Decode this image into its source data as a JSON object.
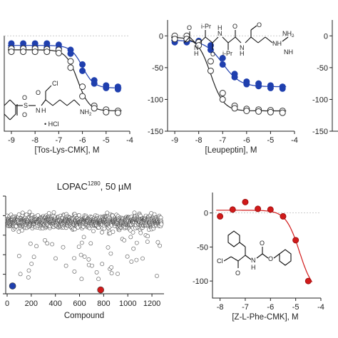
{
  "colors": {
    "blue": "#1f3fae",
    "red": "#d11a1a",
    "open": "#ffffff",
    "stroke": "#333333"
  },
  "chart_data": [
    {
      "id": "tos",
      "type": "scatter",
      "xlabel": "[Tos-Lys-CMK], M",
      "xlim": [
        -9.3,
        -4
      ],
      "ylim": [
        -150,
        25
      ],
      "xticks": [
        -9,
        -8,
        -7,
        -6,
        -5,
        -4
      ],
      "yticks": [],
      "series": [
        {
          "marker": "filled-blue",
          "x": [
            -9,
            -9,
            -8.5,
            -8.5,
            -8,
            -8,
            -7.5,
            -7.5,
            -7,
            -7,
            -6.5,
            -6.5,
            -6,
            -6,
            -5.5,
            -5.5,
            -5,
            -5,
            -4.5,
            -4.5
          ],
          "y": [
            -12,
            -18,
            -12,
            -18,
            -12,
            -17,
            -12,
            -18,
            -14,
            -20,
            -22,
            -28,
            -45,
            -55,
            -70,
            -75,
            -78,
            -82,
            -80,
            -84
          ]
        },
        {
          "marker": "open",
          "x": [
            -9,
            -9,
            -8.5,
            -8.5,
            -8,
            -8,
            -7.5,
            -7.5,
            -7,
            -7,
            -6.5,
            -6.5,
            -6,
            -6,
            -5.5,
            -5.5,
            -5,
            -5,
            -4.5,
            -4.5
          ],
          "y": [
            -20,
            -25,
            -20,
            -25,
            -20,
            -25,
            -21,
            -25,
            -22,
            -27,
            -40,
            -50,
            -80,
            -95,
            -110,
            -114,
            -116,
            -120,
            -118,
            -121
          ]
        }
      ],
      "fits": [
        {
          "color": "blue",
          "top": -15,
          "bottom": -82,
          "logec50": -6.0,
          "hill": 1.8
        },
        {
          "color": "black",
          "top": -22,
          "bottom": -118,
          "logec50": -6.2,
          "hill": 1.8
        }
      ]
    },
    {
      "id": "leu",
      "type": "scatter",
      "xlabel": "[Leupeptin], M",
      "xlim": [
        -9.3,
        -4
      ],
      "ylim": [
        -150,
        25
      ],
      "xticks": [
        -9,
        -8,
        -7,
        -6,
        -5,
        -4
      ],
      "yticks": [
        0,
        -50,
        -100,
        -150
      ],
      "series": [
        {
          "marker": "filled-blue",
          "x": [
            -9,
            -9,
            -8.5,
            -8.5,
            -8,
            -8,
            -7.5,
            -7.5,
            -7,
            -7,
            -6.5,
            -6.5,
            -6,
            -6,
            -5.5,
            -5.5,
            -5,
            -5,
            -4.5,
            -4.5
          ],
          "y": [
            -5,
            -10,
            -5,
            -10,
            -8,
            -12,
            -15,
            -22,
            -35,
            -45,
            -60,
            -65,
            -72,
            -76,
            -75,
            -79,
            -78,
            -82,
            -80,
            -83
          ]
        },
        {
          "marker": "open",
          "x": [
            -9,
            -9,
            -8.5,
            -8.5,
            -8,
            -8,
            -7.5,
            -7.5,
            -7,
            -7,
            -6.5,
            -6.5,
            -6,
            -6,
            -5.5,
            -5.5,
            -5,
            -5,
            -4.5,
            -4.5
          ],
          "y": [
            0,
            -5,
            0,
            -5,
            -10,
            -15,
            -40,
            -55,
            -90,
            -100,
            -110,
            -114,
            -115,
            -118,
            -116,
            -119,
            -117,
            -120,
            -118,
            -121
          ]
        }
      ],
      "fits": [
        {
          "color": "blue",
          "top": -7,
          "bottom": -80,
          "logec50": -7.0,
          "hill": 1.2
        },
        {
          "color": "black",
          "top": -2,
          "bottom": -118,
          "logec50": -7.5,
          "hill": 1.6
        }
      ]
    },
    {
      "id": "third",
      "type": "scatter",
      "xlim": [
        0,
        1
      ],
      "ylim": [
        -150,
        25
      ],
      "yticks": [
        0,
        -50,
        -100,
        -150
      ],
      "series": []
    },
    {
      "id": "lopac",
      "type": "scatter",
      "title_main": "LOPAC",
      "title_sup": "1280",
      "title_rest": ", 50 µM",
      "xlabel": "Compound",
      "xlim": [
        0,
        1300
      ],
      "ylim": [
        0,
        100
      ],
      "xticks": [
        0,
        200,
        400,
        600,
        800,
        1000,
        1200
      ],
      "n_points": 1280,
      "cluster_mean": 74,
      "cluster_spread": 10,
      "highlights": [
        {
          "color": "blue",
          "x": 45,
          "y": 8
        },
        {
          "color": "red",
          "x": 775,
          "y": 4
        }
      ]
    },
    {
      "id": "zphe",
      "type": "scatter",
      "xlabel": "[Z-L-Phe-CMK], M",
      "xlim": [
        -8.3,
        -4
      ],
      "ylim": [
        -125,
        30
      ],
      "xticks": [
        -8,
        -7,
        -6,
        -5,
        -4
      ],
      "yticks": [
        0,
        -50,
        -100
      ],
      "series": [
        {
          "marker": "filled-red",
          "x": [
            -8,
            -7.5,
            -7,
            -6.5,
            -6,
            -5.5,
            -5,
            -4.5
          ],
          "y": [
            -5,
            5,
            16,
            6,
            5,
            -5,
            -40,
            -100
          ]
        }
      ],
      "fits": [
        {
          "color": "red",
          "top": 4,
          "bottom": -118,
          "logec50": -4.85,
          "hill": 1.6
        }
      ]
    }
  ],
  "chem": {
    "tos_labels": {
      "cl": "Cl",
      "o": "O",
      "s": "S",
      "o1": "O",
      "o2": "O",
      "n": "N",
      "h": "H",
      "nh2": "NH",
      "nh2_sub": "2",
      "hcl": "• HCl"
    },
    "leu_labels": {
      "o1": "O",
      "n1": "N",
      "h1": "H",
      "ipr1": "i-Pr",
      "o2": "O",
      "n2": "N",
      "h2": "H",
      "ipr2": "i-Pr",
      "o3": "O",
      "n3": "N",
      "h3": "H",
      "o4": "O",
      "nh": "NH",
      "nh2": "NH",
      "nh2_sub": "2",
      "nh3": "NH"
    },
    "zphe_labels": {
      "cl": "Cl",
      "o1": "O",
      "n": "N",
      "h": "H",
      "o2": "O",
      "o3": "O"
    }
  }
}
